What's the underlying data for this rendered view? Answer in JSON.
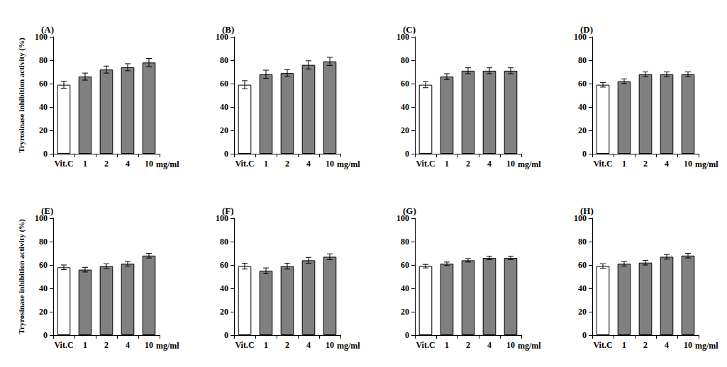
{
  "chart_data": [
    {
      "type": "bar",
      "title": "(A)",
      "ylabel": "Tryrosinase inhibition activity (%)",
      "xlabel": "mg/ml",
      "categories": [
        "Vit.C",
        "1",
        "2",
        "4",
        "10"
      ],
      "values": [
        59,
        66,
        72,
        74,
        78
      ],
      "errors": [
        3,
        3,
        3,
        3,
        3.5
      ],
      "colors": [
        "#ffffff",
        "#808080",
        "#808080",
        "#808080",
        "#808080"
      ],
      "ylim": [
        0,
        100
      ],
      "yticks": [
        0,
        20,
        40,
        60,
        80,
        100
      ],
      "grid": false
    },
    {
      "type": "bar",
      "title": "(B)",
      "xlabel": "mg/ml",
      "categories": [
        "Vit.C",
        "1",
        "2",
        "4",
        "10"
      ],
      "values": [
        59,
        68,
        69,
        76,
        79
      ],
      "errors": [
        3.5,
        3.5,
        3,
        3.5,
        3.5
      ],
      "colors": [
        "#ffffff",
        "#808080",
        "#808080",
        "#808080",
        "#808080"
      ],
      "ylim": [
        0,
        100
      ],
      "yticks": [
        0,
        20,
        40,
        60,
        80,
        100
      ],
      "grid": false
    },
    {
      "type": "bar",
      "title": "(C)",
      "xlabel": "mg/ml",
      "categories": [
        "Vit.C",
        "1",
        "2",
        "4",
        "10"
      ],
      "values": [
        59,
        66,
        71,
        71,
        71
      ],
      "errors": [
        2.5,
        2.5,
        2.5,
        2.5,
        2.5
      ],
      "colors": [
        "#ffffff",
        "#808080",
        "#808080",
        "#808080",
        "#808080"
      ],
      "ylim": [
        0,
        100
      ],
      "yticks": [
        0,
        20,
        40,
        60,
        80,
        100
      ],
      "grid": false
    },
    {
      "type": "bar",
      "title": "(D)",
      "xlabel": "mg/ml",
      "categories": [
        "Vit.C",
        "1",
        "2",
        "4",
        "10"
      ],
      "values": [
        59,
        62,
        68,
        68,
        68
      ],
      "errors": [
        2,
        2,
        2,
        2,
        2
      ],
      "colors": [
        "#ffffff",
        "#808080",
        "#808080",
        "#808080",
        "#808080"
      ],
      "ylim": [
        0,
        100
      ],
      "yticks": [
        0,
        20,
        40,
        60,
        80,
        100
      ],
      "grid": false
    },
    {
      "type": "bar",
      "title": "(E)",
      "ylabel": "Tryrosinase inhibition activity (%)",
      "xlabel": "mg/ml",
      "categories": [
        "Vit.C",
        "1",
        "2",
        "4",
        "10"
      ],
      "values": [
        58,
        56,
        59,
        61,
        68
      ],
      "errors": [
        2,
        2,
        2,
        2,
        2
      ],
      "colors": [
        "#ffffff",
        "#808080",
        "#808080",
        "#808080",
        "#808080"
      ],
      "ylim": [
        0,
        100
      ],
      "yticks": [
        0,
        20,
        40,
        60,
        80,
        100
      ],
      "grid": false
    },
    {
      "type": "bar",
      "title": "(F)",
      "xlabel": "mg/ml",
      "categories": [
        "Vit.C",
        "1",
        "2",
        "4",
        "10"
      ],
      "values": [
        59,
        55,
        59,
        64,
        67
      ],
      "errors": [
        2.5,
        2.5,
        2.5,
        2.5,
        2.5
      ],
      "colors": [
        "#ffffff",
        "#808080",
        "#808080",
        "#808080",
        "#808080"
      ],
      "ylim": [
        0,
        100
      ],
      "yticks": [
        0,
        20,
        40,
        60,
        80,
        100
      ],
      "grid": false
    },
    {
      "type": "bar",
      "title": "(G)",
      "xlabel": "mg/ml",
      "categories": [
        "Vit.C",
        "1",
        "2",
        "4",
        "10"
      ],
      "values": [
        59,
        61,
        64,
        66,
        66
      ],
      "errors": [
        1.5,
        1.5,
        1.5,
        1.5,
        1.5
      ],
      "colors": [
        "#ffffff",
        "#808080",
        "#808080",
        "#808080",
        "#808080"
      ],
      "ylim": [
        0,
        100
      ],
      "yticks": [
        0,
        20,
        40,
        60,
        80,
        100
      ],
      "grid": false
    },
    {
      "type": "bar",
      "title": "(H)",
      "xlabel": "mg/ml",
      "categories": [
        "Vit.C",
        "1",
        "2",
        "4",
        "10"
      ],
      "values": [
        59,
        61,
        62,
        67,
        68
      ],
      "errors": [
        2,
        2,
        2,
        2,
        2
      ],
      "colors": [
        "#ffffff",
        "#808080",
        "#808080",
        "#808080",
        "#808080"
      ],
      "ylim": [
        0,
        100
      ],
      "yticks": [
        0,
        20,
        40,
        60,
        80,
        100
      ],
      "grid": false
    }
  ]
}
